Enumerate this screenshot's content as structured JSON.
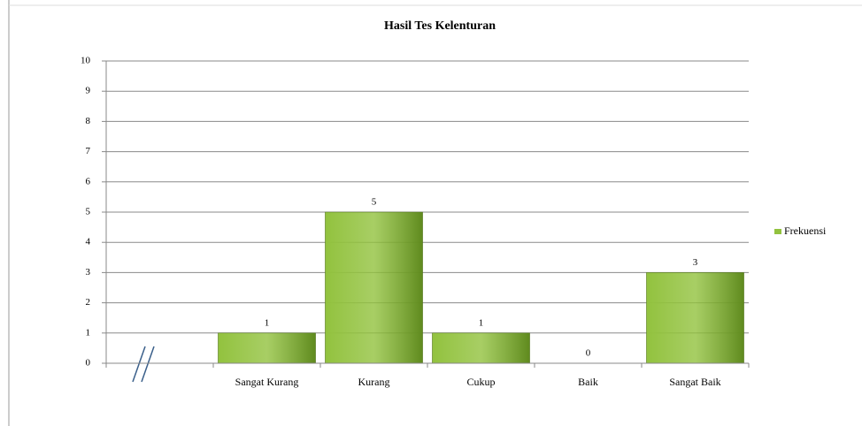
{
  "chart_data": {
    "type": "bar",
    "title": "Hasil Tes Kelenturan",
    "categories": [
      null,
      "Sangat Kurang",
      "Kurang",
      "Cukup",
      "Baik",
      "Sangat Baik"
    ],
    "series": [
      {
        "name": "Frekuensi",
        "color": "#92c23e",
        "values": [
          null,
          1,
          5,
          1,
          0,
          3
        ]
      }
    ],
    "ylim": [
      0,
      10
    ],
    "yticks": [
      0,
      1,
      2,
      3,
      4,
      5,
      6,
      7,
      8,
      9,
      10
    ],
    "grid": true,
    "legend": "right"
  }
}
